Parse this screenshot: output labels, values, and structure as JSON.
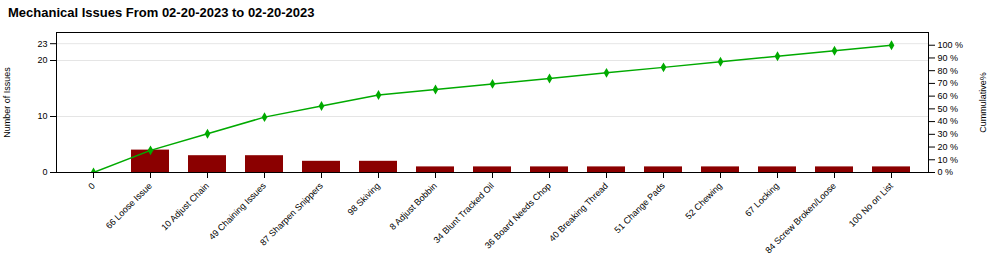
{
  "chart_data": {
    "type": "bar",
    "title": "Mechanical Issues From 02-20-2023 to 02-20-2023",
    "ylabel": "Number of Issues",
    "y2label": "Cummulative%",
    "categories": [
      "0",
      "66 Loose Issue",
      "10 Adjust Chain",
      "49 Chaining Issues",
      "87 Sharpen Snippers",
      "98 Skiving",
      "8 Adjust Bobbin",
      "34 Blunt Tracked Oil",
      "36 Board Needs Chop",
      "40 Breaking Thread",
      "51 Change Pads",
      "52 Chewing",
      "67 Locking",
      "84 Screw Broken/Loose",
      "100 No on List"
    ],
    "series": [
      {
        "type": "bar",
        "color": "#8B0000",
        "values": [
          0,
          4,
          3,
          3,
          2,
          2,
          1,
          1,
          1,
          1,
          1,
          1,
          1,
          1,
          1
        ]
      },
      {
        "type": "line",
        "color": "#00aa00",
        "marker": "diamond",
        "axis": "y2",
        "values": [
          0,
          17.4,
          30.4,
          43.5,
          52.2,
          60.9,
          65.2,
          69.6,
          73.9,
          78.3,
          82.6,
          87.0,
          91.3,
          95.7,
          100.0
        ]
      }
    ],
    "ylim": [
      0,
      25
    ],
    "yticks": [
      0,
      10,
      20,
      23
    ],
    "y2lim": [
      0,
      110
    ],
    "y2ticks": [
      {
        "value": 0,
        "label": "0 %"
      },
      {
        "value": 10,
        "label": "10 %"
      },
      {
        "value": 20,
        "label": "20 %"
      },
      {
        "value": 30,
        "label": "30 %"
      },
      {
        "value": 40,
        "label": "40 %"
      },
      {
        "value": 50,
        "label": "50 %"
      },
      {
        "value": 60,
        "label": "60 %"
      },
      {
        "value": 70,
        "label": "70 %"
      },
      {
        "value": 80,
        "label": "80 %"
      },
      {
        "value": 90,
        "label": "90 %"
      },
      {
        "value": 100,
        "label": "100 %"
      }
    ],
    "grid": true
  }
}
